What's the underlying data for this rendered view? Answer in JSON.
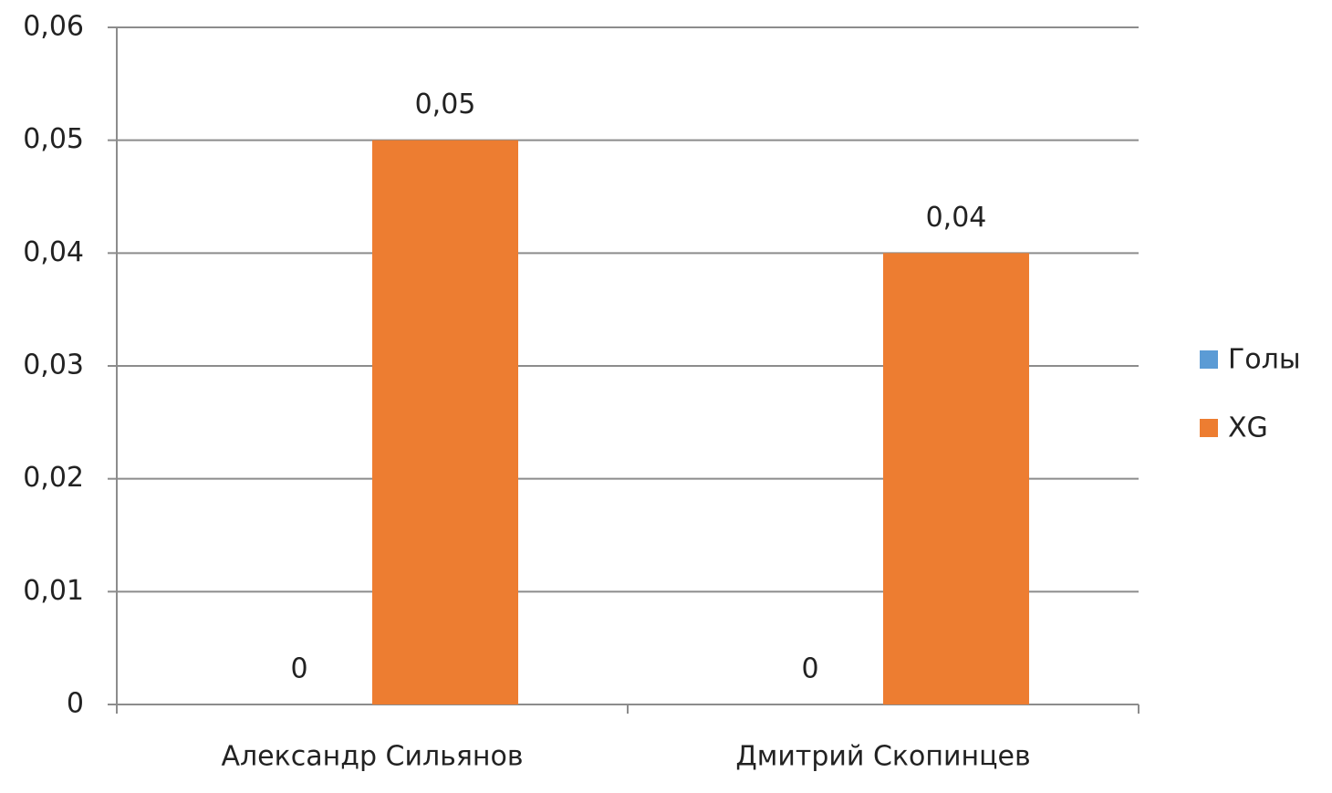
{
  "chart_data": {
    "type": "bar",
    "categories": [
      "Александр Сильянов",
      "Дмитрий Скопинцев"
    ],
    "series": [
      {
        "name": "Голы",
        "color": "#5b9bd5",
        "values": [
          0,
          0
        ]
      },
      {
        "name": "XG",
        "color": "#ed7d31",
        "values": [
          0.05,
          0.04
        ],
        "value_labels": [
          "0,05",
          "0,04"
        ]
      }
    ],
    "ylim": [
      0,
      0.06
    ],
    "yticks": [
      0,
      {
        "value": 0.01,
        "label": "0,01"
      },
      {
        "value": 0.02,
        "label": "0,02"
      },
      {
        "value": 0.03,
        "label": "0,03"
      },
      {
        "value": 0.04,
        "label": "0,04"
      },
      {
        "value": 0.05,
        "label": "0,05"
      },
      {
        "value": 0.06,
        "label": "0,06"
      }
    ],
    "grid": true,
    "legend": "right"
  }
}
